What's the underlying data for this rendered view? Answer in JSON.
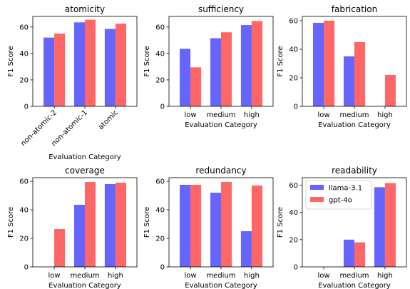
{
  "colors": {
    "llama": "#6666ff",
    "gpt": "#ff6666"
  },
  "chart_data": [
    {
      "type": "bar",
      "title": "atomicity",
      "categories": [
        "non-atomic-2",
        "non-atomic-1",
        "atomic"
      ],
      "series": [
        {
          "name": "llama-3.1",
          "values": [
            52,
            63.5,
            58.5
          ]
        },
        {
          "name": "gpt-4o",
          "values": [
            55,
            65.5,
            62.5
          ]
        }
      ],
      "ylim": [
        0,
        68
      ],
      "yticks": [
        0,
        20,
        40,
        60
      ],
      "xlabel": "Evaluation Category",
      "ylabel": "F1 Score",
      "rotated_xticks": true,
      "legend": null
    },
    {
      "type": "bar",
      "title": "sufficiency",
      "categories": [
        "low",
        "medium",
        "high"
      ],
      "series": [
        {
          "name": "llama-3.1",
          "values": [
            43.5,
            51.5,
            61.5
          ]
        },
        {
          "name": "gpt-4o",
          "values": [
            29.5,
            56,
            64.5
          ]
        }
      ],
      "ylim": [
        0,
        68
      ],
      "yticks": [
        0,
        20,
        40,
        60
      ],
      "xlabel": "Evaluation Category",
      "ylabel": "F1 Score",
      "rotated_xticks": false,
      "legend": null
    },
    {
      "type": "bar",
      "title": "fabrication",
      "categories": [
        "low",
        "medium",
        "high"
      ],
      "series": [
        {
          "name": "llama-3.1",
          "values": [
            58.5,
            35,
            0
          ]
        },
        {
          "name": "gpt-4o",
          "values": [
            60,
            45,
            22
          ]
        }
      ],
      "ylim": [
        0,
        63
      ],
      "yticks": [
        0,
        20,
        40,
        60
      ],
      "xlabel": "Evaluation Category",
      "ylabel": "F1 Score",
      "rotated_xticks": false,
      "legend": null
    },
    {
      "type": "bar",
      "title": "coverage",
      "categories": [
        "low",
        "medium",
        "high"
      ],
      "series": [
        {
          "name": "llama-3.1",
          "values": [
            0,
            43.5,
            58
          ]
        },
        {
          "name": "gpt-4o",
          "values": [
            26.5,
            59.5,
            59
          ]
        }
      ],
      "ylim": [
        0,
        62.5
      ],
      "yticks": [
        0,
        20,
        40,
        60
      ],
      "xlabel": "Evaluation Category",
      "ylabel": "F1 Score",
      "rotated_xticks": false,
      "legend": null
    },
    {
      "type": "bar",
      "title": "redundancy",
      "categories": [
        "low",
        "medium",
        "high"
      ],
      "series": [
        {
          "name": "llama-3.1",
          "values": [
            57.5,
            52,
            25
          ]
        },
        {
          "name": "gpt-4o",
          "values": [
            57.5,
            59.5,
            57
          ]
        }
      ],
      "ylim": [
        0,
        62.5
      ],
      "yticks": [
        0,
        20,
        40,
        60
      ],
      "xlabel": "Evaluation Category",
      "ylabel": "F1 Score",
      "rotated_xticks": false,
      "legend": null
    },
    {
      "type": "bar",
      "title": "readability",
      "categories": [
        "low",
        "medium",
        "high"
      ],
      "series": [
        {
          "name": "llama-3.1",
          "values": [
            0,
            20,
            58.5
          ]
        },
        {
          "name": "gpt-4o",
          "values": [
            0,
            18,
            61.5
          ]
        }
      ],
      "ylim": [
        0,
        65.5
      ],
      "yticks": [
        0,
        20,
        40,
        60
      ],
      "xlabel": "Evaluation Category",
      "ylabel": "F1 Score",
      "rotated_xticks": false,
      "legend": "top-left"
    }
  ]
}
